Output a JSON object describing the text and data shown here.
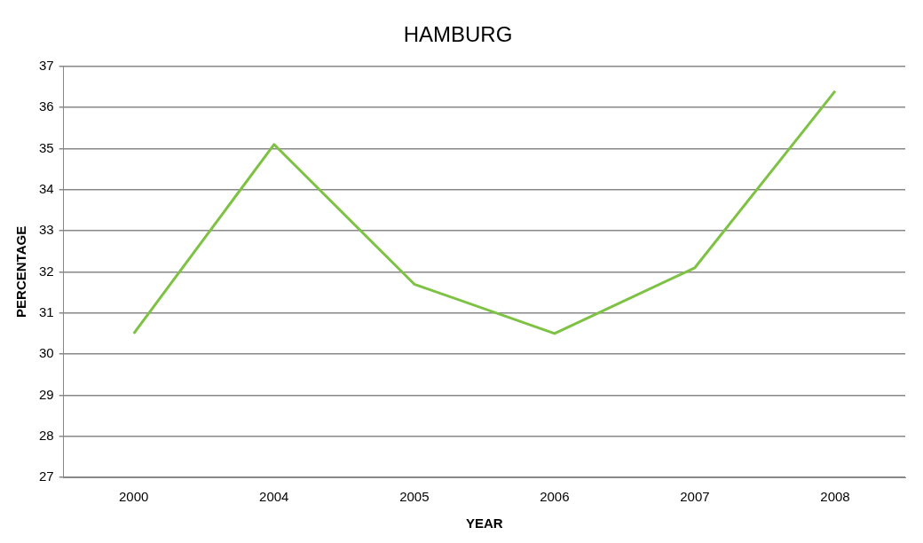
{
  "chart_data": {
    "type": "line",
    "title": "HAMBURG",
    "xlabel": "YEAR",
    "ylabel": "PERCENTAGE",
    "categories": [
      "2000",
      "2004",
      "2005",
      "2006",
      "2007",
      "2008"
    ],
    "series": [
      {
        "color": "#7dc242",
        "values": [
          30.5,
          35.1,
          31.7,
          30.5,
          32.1,
          36.4
        ]
      }
    ],
    "ylim": [
      27,
      37
    ],
    "yticks": [
      27,
      28,
      29,
      30,
      31,
      32,
      33,
      34,
      35,
      36,
      37
    ],
    "grid": "y",
    "legend": false,
    "marker": "none",
    "line_style": "solid"
  }
}
